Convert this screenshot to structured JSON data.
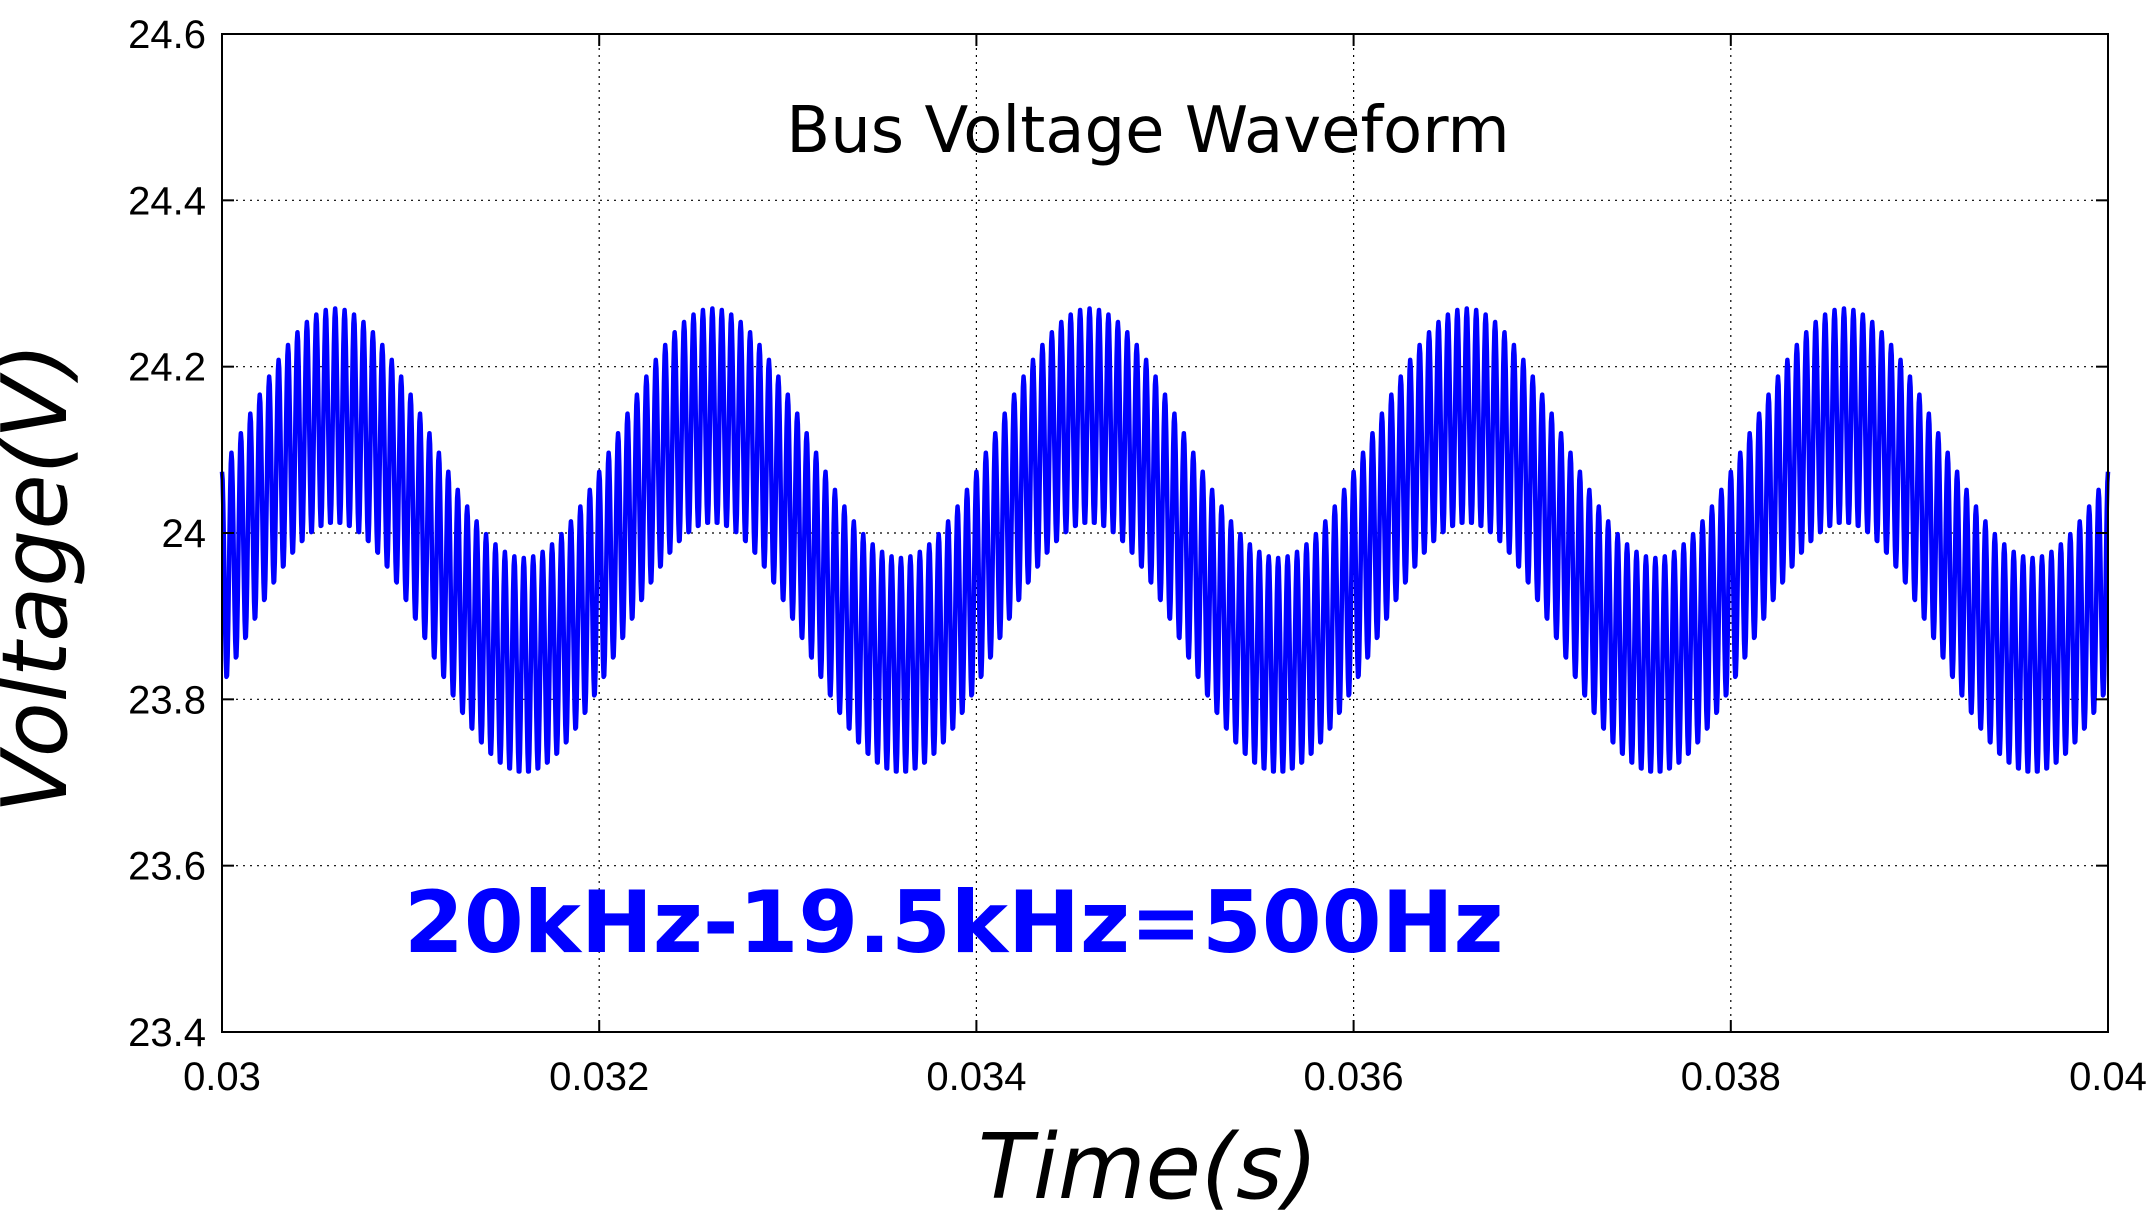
{
  "chart_data": {
    "type": "line",
    "title": "Bus Voltage Waveform",
    "xlabel": "Time(s)",
    "ylabel": "Voltage(V)",
    "annotation": "20kHz-19.5kHz=500Hz",
    "xlim": [
      0.03,
      0.04
    ],
    "ylim": [
      23.4,
      24.6
    ],
    "x_ticks": [
      "0.03",
      "0.032",
      "0.034",
      "0.036",
      "0.038",
      "0.04"
    ],
    "y_ticks": [
      "23.4",
      "23.6",
      "23.8",
      "24",
      "24.2",
      "24.4",
      "24.6"
    ],
    "grid": true,
    "series": [
      {
        "color": "#0000ff",
        "x_start": 0.03,
        "x_end": 0.04,
        "mean": 23.99,
        "beat_frequency_hz": 500,
        "beat_amplitude": 0.15,
        "carrier_frequency_hz": 20000,
        "carrier_amplitude": 0.13
      }
    ]
  }
}
